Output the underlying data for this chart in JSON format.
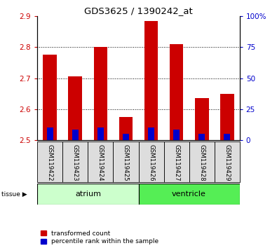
{
  "title": "GDS3625 / 1390242_at",
  "samples": [
    "GSM119422",
    "GSM119423",
    "GSM119424",
    "GSM119425",
    "GSM119426",
    "GSM119427",
    "GSM119428",
    "GSM119429"
  ],
  "red_tops": [
    2.775,
    2.705,
    2.8,
    2.575,
    2.885,
    2.81,
    2.635,
    2.65
  ],
  "blue_tops": [
    2.54,
    2.535,
    2.54,
    2.52,
    2.54,
    2.535,
    2.52,
    2.52
  ],
  "bar_base": 2.5,
  "ylim_left": [
    2.5,
    2.9
  ],
  "ylim_right": [
    0,
    100
  ],
  "yticks_left": [
    2.5,
    2.6,
    2.7,
    2.8,
    2.9
  ],
  "yticks_right": [
    0,
    25,
    50,
    75,
    100
  ],
  "ytick_labels_right": [
    "0",
    "25",
    "50",
    "75",
    "100%"
  ],
  "red_color": "#cc0000",
  "blue_color": "#0000cc",
  "atrium_label": "atrium",
  "ventricle_label": "ventricle",
  "atrium_color": "#ccffcc",
  "ventricle_color": "#55ee55",
  "tissue_label": "tissue",
  "legend_red": "transformed count",
  "legend_blue": "percentile rank within the sample",
  "bar_width": 0.55,
  "bg_color": "#ffffff",
  "sample_box_color": "#dddddd",
  "grid_yticks": [
    2.6,
    2.7,
    2.8
  ]
}
